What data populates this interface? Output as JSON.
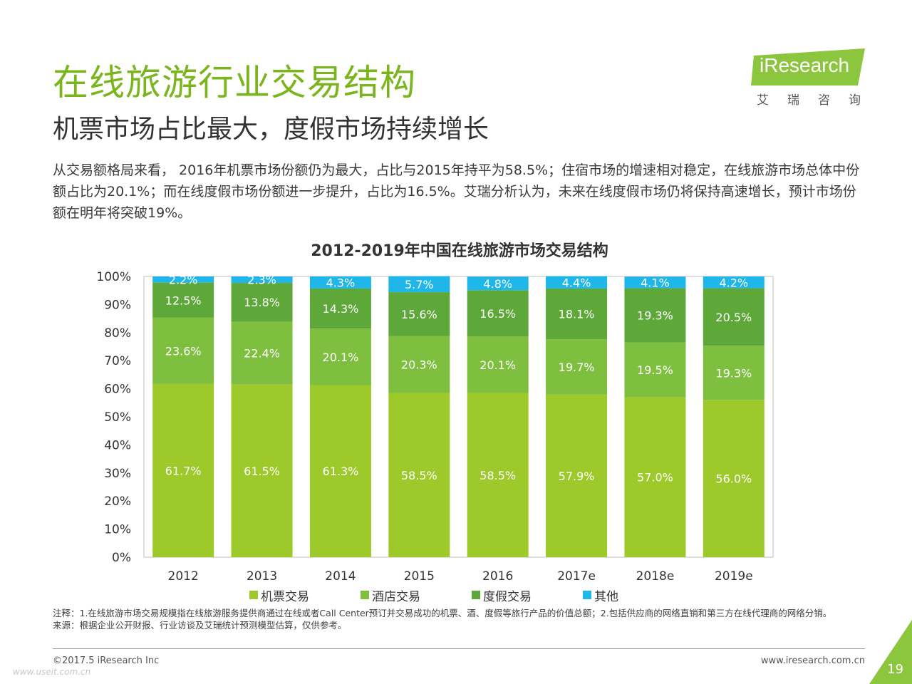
{
  "header": {
    "title": "在线旅游行业交易结构",
    "subtitle": "机票市场占比最大，度假市场持续增长",
    "body": "从交易额格局来看， 2016年机票市场份额仍为最大，占比与2015年持平为58.5%；住宿市场的增速相对稳定，在线旅游市场总体中份额占比为20.1%；而在线度假市场份额进一步提升，占比为16.5%。艾瑞分析认为，未来在线度假市场仍将保持高速增长，预计市场份额在明年将突破19%。"
  },
  "logo": {
    "text": "iResearch",
    "cn": "艾瑞咨询",
    "color": "#8cc63f"
  },
  "chart_data": {
    "type": "bar",
    "stacked": true,
    "title": "2012-2019年中国在线旅游市场交易结构",
    "categories": [
      "2012",
      "2013",
      "2014",
      "2015",
      "2016",
      "2017e",
      "2018e",
      "2019e"
    ],
    "series": [
      {
        "name": "机票交易",
        "color": "#9dc92a",
        "values": [
          61.7,
          61.5,
          61.3,
          58.5,
          58.5,
          57.9,
          57.0,
          56.0
        ]
      },
      {
        "name": "酒店交易",
        "color": "#7ebf3f",
        "values": [
          23.6,
          22.4,
          20.1,
          20.3,
          20.1,
          19.7,
          19.5,
          19.3
        ]
      },
      {
        "name": "度假交易",
        "color": "#5ea83a",
        "values": [
          12.5,
          13.8,
          14.3,
          15.6,
          16.5,
          18.1,
          19.3,
          20.5
        ]
      },
      {
        "name": "其他",
        "color": "#1fb7ea",
        "values": [
          2.2,
          2.3,
          4.3,
          5.7,
          4.8,
          4.4,
          4.1,
          4.2
        ]
      }
    ],
    "ylim": [
      0,
      100
    ],
    "yticks": [
      "0%",
      "10%",
      "20%",
      "30%",
      "40%",
      "50%",
      "60%",
      "70%",
      "80%",
      "90%",
      "100%"
    ],
    "value_suffix": "%",
    "legend_position": "bottom"
  },
  "footer": {
    "note": "注释：1.在线旅游市场交易规模指在线旅游服务提供商通过在线或者Call Center预订并交易成功的机票、酒、度假等旅行产品的价值总额；2.包括供应商的网络直销和第三方在线代理商的网络分销。",
    "source": "来源：根据企业公开财报、行业访谈及艾瑞统计预测模型估算，仅供参考。",
    "copyright": "©2017.5 iResearch Inc",
    "website": "www.iresearch.com.cn",
    "page_number": "19",
    "watermark": "www.useit.com.cn",
    "corner_color": "#8cc63f"
  }
}
